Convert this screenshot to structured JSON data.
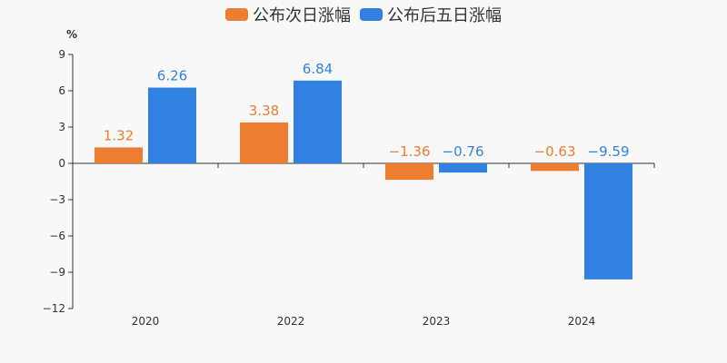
{
  "chart_data": {
    "type": "bar",
    "categories": [
      "2020",
      "2022",
      "2023",
      "2024"
    ],
    "series": [
      {
        "name": "公布次日涨幅",
        "values": [
          1.32,
          3.38,
          -1.36,
          -0.63
        ],
        "color": "#ed7d31"
      },
      {
        "name": "公布后五日涨幅",
        "values": [
          6.26,
          6.84,
          -0.76,
          -9.59
        ],
        "color": "#3182e0"
      }
    ],
    "data_labels": [
      [
        "1.32",
        "3.38",
        "−1.36",
        "−0.63"
      ],
      [
        "6.26",
        "6.84",
        "−0.76",
        "−9.59"
      ]
    ],
    "title": "",
    "xlabel": "",
    "ylabel": "%",
    "ylim": [
      -12,
      9
    ],
    "yticks": [
      9,
      6,
      3,
      0,
      -3,
      -6,
      -9,
      -12
    ],
    "ytick_labels": [
      "9",
      "6",
      "3",
      "0",
      "−3",
      "−6",
      "−9",
      "−12"
    ],
    "grid": false,
    "legend_position": "top-center"
  }
}
